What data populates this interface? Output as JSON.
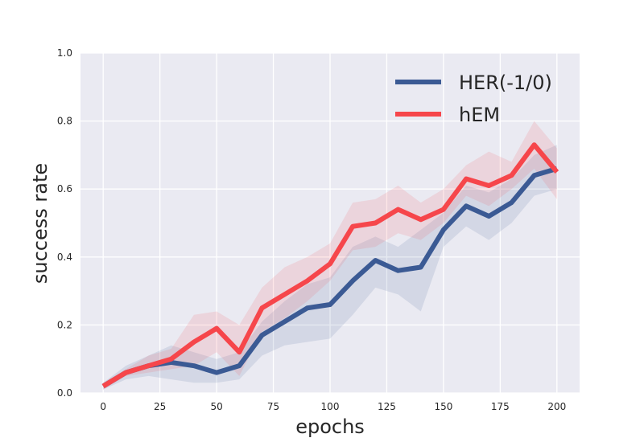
{
  "chart_data": {
    "type": "line",
    "xlabel": "epochs",
    "ylabel": "success rate",
    "xlim": [
      -10,
      210
    ],
    "ylim": [
      0,
      1.0
    ],
    "xticks": [
      0,
      25,
      50,
      75,
      100,
      125,
      150,
      175,
      200
    ],
    "yticks": [
      0.0,
      0.2,
      0.4,
      0.6,
      0.8,
      1.0
    ],
    "xtick_labels": [
      "0",
      "25",
      "50",
      "75",
      "100",
      "125",
      "150",
      "175",
      "200"
    ],
    "ytick_labels": [
      "0.0",
      "0.2",
      "0.4",
      "0.6",
      "0.8",
      "1.0"
    ],
    "grid": true,
    "legend_position": "top-right",
    "x": [
      0,
      10,
      20,
      30,
      40,
      50,
      60,
      70,
      80,
      90,
      100,
      110,
      120,
      130,
      140,
      150,
      160,
      170,
      180,
      190,
      200
    ],
    "series": [
      {
        "name": "HER(-1/0)",
        "color": "#3b5a94",
        "values": [
          0.02,
          0.06,
          0.08,
          0.09,
          0.08,
          0.06,
          0.08,
          0.17,
          0.21,
          0.25,
          0.26,
          0.33,
          0.39,
          0.36,
          0.37,
          0.48,
          0.55,
          0.52,
          0.56,
          0.64,
          0.66
        ],
        "lower": [
          0.01,
          0.04,
          0.05,
          0.04,
          0.03,
          0.03,
          0.04,
          0.11,
          0.14,
          0.15,
          0.16,
          0.23,
          0.31,
          0.29,
          0.24,
          0.43,
          0.49,
          0.45,
          0.5,
          0.58,
          0.6
        ],
        "upper": [
          0.03,
          0.08,
          0.11,
          0.14,
          0.12,
          0.1,
          0.12,
          0.21,
          0.27,
          0.32,
          0.34,
          0.43,
          0.46,
          0.43,
          0.48,
          0.53,
          0.61,
          0.59,
          0.63,
          0.7,
          0.73
        ]
      },
      {
        "name": "hEM",
        "color": "#f6464b",
        "values": [
          0.02,
          0.06,
          0.08,
          0.1,
          0.15,
          0.19,
          0.12,
          0.25,
          0.29,
          0.33,
          0.38,
          0.49,
          0.5,
          0.54,
          0.51,
          0.54,
          0.63,
          0.61,
          0.64,
          0.73,
          0.65
        ],
        "lower": [
          0.01,
          0.05,
          0.06,
          0.07,
          0.08,
          0.12,
          0.05,
          0.18,
          0.22,
          0.27,
          0.33,
          0.42,
          0.43,
          0.47,
          0.45,
          0.5,
          0.58,
          0.55,
          0.6,
          0.66,
          0.57
        ],
        "upper": [
          0.03,
          0.07,
          0.11,
          0.13,
          0.23,
          0.24,
          0.2,
          0.31,
          0.37,
          0.4,
          0.44,
          0.56,
          0.57,
          0.61,
          0.56,
          0.6,
          0.67,
          0.71,
          0.68,
          0.8,
          0.72
        ]
      }
    ]
  }
}
